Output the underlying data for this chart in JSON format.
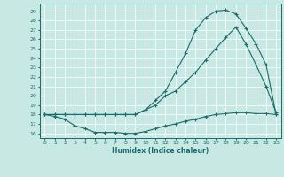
{
  "xlabel": "Humidex (Indice chaleur)",
  "bg_color": "#c8e8e4",
  "line_color": "#1a6b6b",
  "grid_color": "#ffffff",
  "xlim": [
    -0.5,
    23.5
  ],
  "ylim": [
    15.5,
    29.8
  ],
  "xticks": [
    0,
    1,
    2,
    3,
    4,
    5,
    6,
    7,
    8,
    9,
    10,
    11,
    12,
    13,
    14,
    15,
    16,
    17,
    18,
    19,
    20,
    21,
    22,
    23
  ],
  "yticks": [
    16,
    17,
    18,
    19,
    20,
    21,
    22,
    23,
    24,
    25,
    26,
    27,
    28,
    29
  ],
  "line1_x": [
    0,
    1,
    2,
    3,
    4,
    5,
    6,
    7,
    8,
    9,
    10,
    11,
    12,
    13,
    14,
    15,
    16,
    17,
    18,
    19,
    20,
    21,
    22,
    23
  ],
  "line1_y": [
    18.0,
    17.8,
    17.5,
    16.8,
    16.5,
    16.1,
    16.1,
    16.1,
    16.0,
    16.0,
    16.2,
    16.5,
    16.8,
    17.0,
    17.3,
    17.5,
    17.8,
    18.0,
    18.1,
    18.2,
    18.2,
    18.1,
    18.1,
    18.0
  ],
  "line2_x": [
    0,
    1,
    2,
    3,
    4,
    5,
    6,
    7,
    8,
    9,
    10,
    11,
    12,
    13,
    14,
    15,
    16,
    17,
    18,
    19,
    20,
    21,
    22,
    23
  ],
  "line2_y": [
    18.0,
    18.0,
    18.0,
    18.0,
    18.0,
    18.0,
    18.0,
    18.0,
    18.0,
    18.0,
    18.5,
    19.5,
    20.5,
    22.5,
    24.5,
    27.0,
    28.3,
    29.0,
    29.1,
    28.7,
    27.2,
    25.5,
    23.3,
    18.0
  ],
  "line3_x": [
    0,
    1,
    2,
    3,
    4,
    5,
    6,
    7,
    8,
    9,
    10,
    11,
    12,
    13,
    14,
    15,
    16,
    17,
    18,
    19,
    20,
    21,
    22,
    23
  ],
  "line3_y": [
    18.0,
    18.0,
    18.0,
    18.0,
    18.0,
    18.0,
    18.0,
    18.0,
    18.0,
    18.0,
    18.5,
    19.0,
    20.0,
    20.5,
    21.5,
    22.5,
    23.8,
    25.0,
    26.2,
    27.3,
    25.5,
    23.3,
    21.0,
    18.2
  ]
}
